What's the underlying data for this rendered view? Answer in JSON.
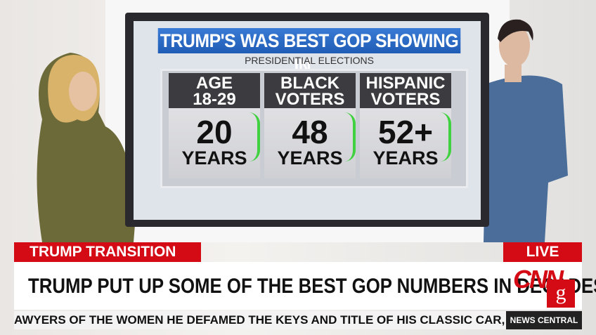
{
  "screen": {
    "title": "TRUMP'S WAS BEST GOP SHOWING IN...",
    "subtitle": "PRESIDENTIAL ELECTIONS",
    "panels": [
      {
        "header": [
          "AGE",
          "18-29"
        ],
        "number": "20",
        "unit": "YEARS"
      },
      {
        "header": [
          "BLACK",
          "VOTERS"
        ],
        "number": "48",
        "unit": "YEARS"
      },
      {
        "header": [
          "HISPANIC",
          "VOTERS"
        ],
        "number": "52+",
        "unit": "YEARS"
      }
    ]
  },
  "lower_third": {
    "tag": "TRUMP TRANSITION",
    "live": "LIVE",
    "headline": "TRUMP PUT UP SOME OF THE BEST GOP NUMBERS IN DECADES",
    "logo": "CNN",
    "logo_badge": "g",
    "ticker": "AWYERS OF THE WOMEN HE DEFAMED THE KEYS AND TITLE OF HIS CLASSIC CAR, AND",
    "show": "NEWS CENTRAL"
  }
}
